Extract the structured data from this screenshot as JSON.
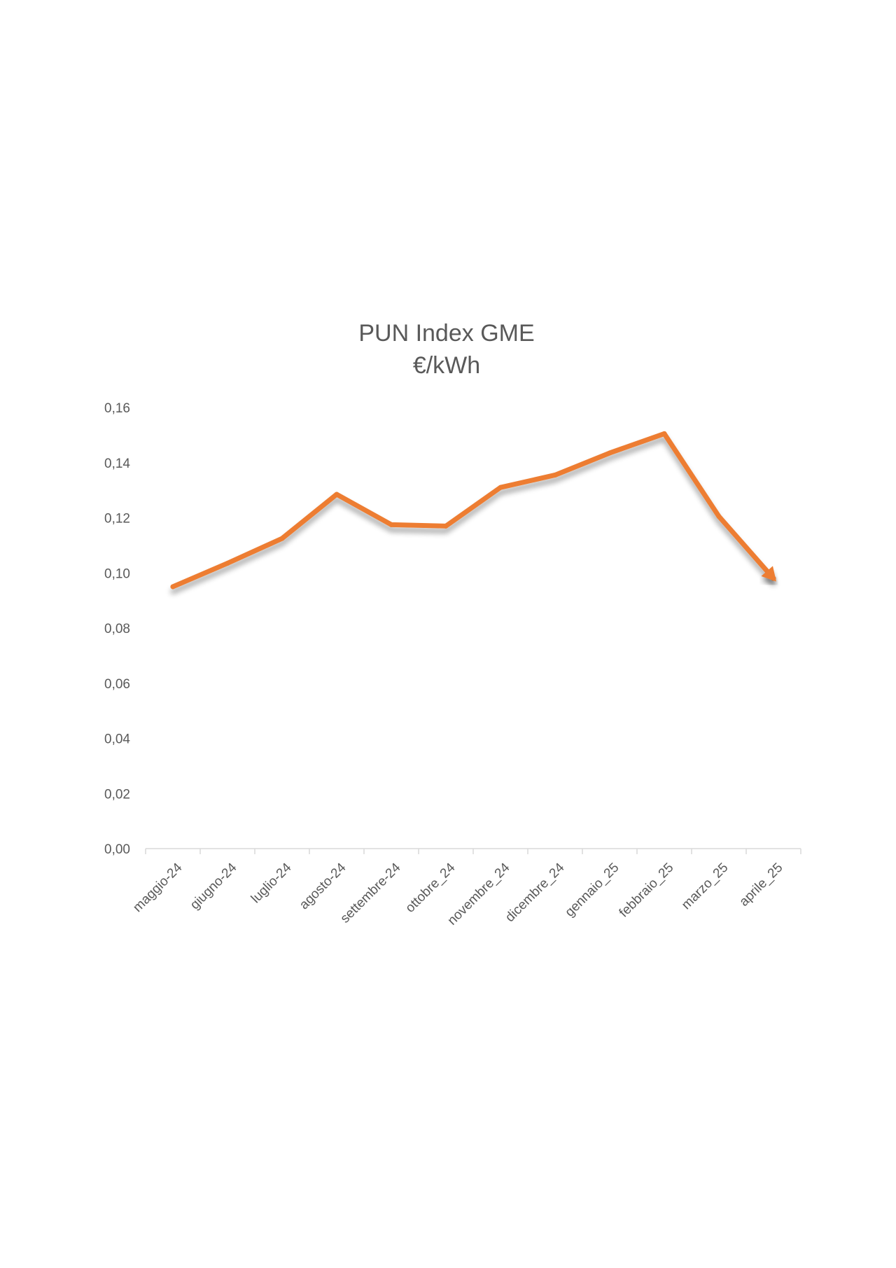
{
  "chart_data": {
    "type": "line",
    "title": "PUN Index GME",
    "subtitle": "€/kWh",
    "xlabel": "",
    "ylabel": "",
    "categories": [
      "maggio-24",
      "giugno-24",
      "luglio-24",
      "agosto-24",
      "settembre-24",
      "ottobre_24",
      "novembre_24",
      "dicembre_24",
      "gennaio_25",
      "febbraio_25",
      "marzo_25",
      "aprile_25"
    ],
    "series": [
      {
        "values": [
          0.095,
          0.1035,
          0.1125,
          0.1285,
          0.1175,
          0.117,
          0.131,
          0.1355,
          0.1435,
          0.1505,
          0.1205,
          0.098
        ]
      }
    ],
    "y_ticks": [
      "0,00",
      "0,02",
      "0,04",
      "0,06",
      "0,08",
      "0,10",
      "0,12",
      "0,14",
      "0,16"
    ],
    "ylim": [
      0,
      0.16
    ],
    "grid": false,
    "legend": "none",
    "line_end": "arrow",
    "colors": {
      "line": "#ED7D31",
      "text": "#595959",
      "axis": "#D9D9D9"
    }
  }
}
